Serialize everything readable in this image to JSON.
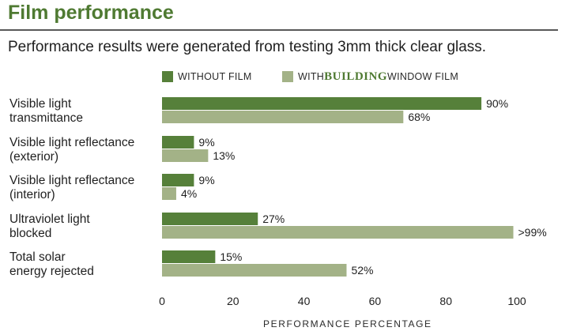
{
  "header": {
    "title": "Film performance",
    "subtitle": "Performance results were generated from testing 3mm thick clear glass."
  },
  "legend": {
    "without_label": "WITHOUT FILM",
    "with_prefix": "WITH ",
    "with_brand": "BUILDING",
    "with_suffix": "WINDOW FILM"
  },
  "categories": [
    {
      "line1": "Visible light",
      "line2": "transmittance"
    },
    {
      "line1": "Visible light reflectance",
      "line2": "(exterior)"
    },
    {
      "line1": "Visible light reflectance",
      "line2": "(interior)"
    },
    {
      "line1": "Ultraviolet light",
      "line2": "blocked"
    },
    {
      "line1": "Total solar",
      "line2": "energy rejected"
    }
  ],
  "colors": {
    "without": "#56803a",
    "with": "#a3b287",
    "title": "#4f7a32"
  },
  "chart_data": {
    "type": "bar",
    "orientation": "horizontal",
    "categories": [
      "Visible light transmittance",
      "Visible light reflectance (exterior)",
      "Visible light reflectance (interior)",
      "Ultraviolet light blocked",
      "Total solar energy rejected"
    ],
    "series": [
      {
        "name": "WITHOUT FILM",
        "values": [
          90,
          9,
          9,
          27,
          15
        ],
        "labels": [
          "90%",
          "9%",
          "9%",
          "27%",
          "15%"
        ]
      },
      {
        "name": "WITH BUILDING WINDOW FILM",
        "values": [
          68,
          13,
          4,
          99,
          52
        ],
        "labels": [
          "68%",
          "13%",
          "4%",
          ">99%",
          "52%"
        ]
      }
    ],
    "title": "Film performance",
    "xlabel": "PERFORMANCE PERCENTAGE",
    "ylabel": "",
    "xlim": [
      0,
      100
    ],
    "xticks": [
      0,
      20,
      40,
      60,
      80,
      100
    ],
    "grid": false,
    "legend_position": "top"
  }
}
